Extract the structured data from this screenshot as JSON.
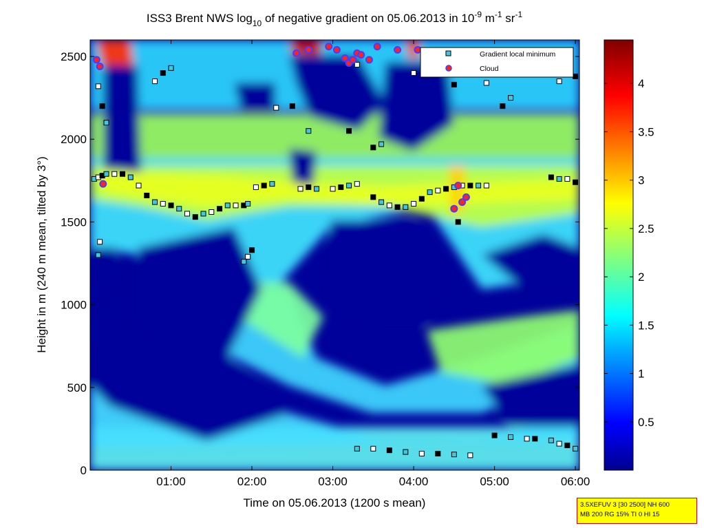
{
  "chart_data": {
    "type": "heatmap",
    "title": {
      "prefix": "ISS3 Brent NWS log",
      "sub": "10",
      "mid": " of negative gradient on 05.06.2013 in 10",
      "sup1": "-9",
      "mid2": " m",
      "sup2": "-1",
      "mid3": " sr",
      "sup3": "-1"
    },
    "xlabel": "Time on 05.06.2013 (1200 s mean)",
    "ylabel": "Height in m (240 m mean, tilted by 3°)",
    "x_ticks": [
      "01:00",
      "02:00",
      "03:00",
      "04:00",
      "05:00",
      "06:00"
    ],
    "x_tick_hours": [
      1,
      2,
      3,
      4,
      5,
      6
    ],
    "xlim_hours": [
      0,
      6.05
    ],
    "y_ticks": [
      0,
      500,
      1000,
      1500,
      2000,
      2500
    ],
    "ylim": [
      0,
      2600
    ],
    "colorbar": {
      "min": 0,
      "max": 4.45,
      "ticks": [
        0.5,
        1,
        1.5,
        2,
        2.5,
        3,
        3.5,
        4
      ],
      "tick_labels": [
        "0.5",
        "1",
        "1.5",
        "2",
        "2.5",
        "3",
        "3.5",
        "4"
      ],
      "colormap": "jet"
    },
    "legend": {
      "placement": "top-right",
      "entries": [
        {
          "label": "Gradient local minimum",
          "marker": "square",
          "color": "#40c8e0"
        },
        {
          "label": "Cloud",
          "marker": "circle",
          "color": "#ff2020",
          "edge": "#4040ff"
        }
      ]
    },
    "series": [
      {
        "name": "Gradient local minimum",
        "points": [
          [
            0.05,
            1760
          ],
          [
            0.1,
            1770
          ],
          [
            0.15,
            1780
          ],
          [
            0.2,
            1790
          ],
          [
            0.3,
            1790
          ],
          [
            0.4,
            1790
          ],
          [
            0.5,
            1770
          ],
          [
            0.6,
            1720
          ],
          [
            0.7,
            1660
          ],
          [
            0.8,
            1620
          ],
          [
            0.9,
            1610
          ],
          [
            1.0,
            1600
          ],
          [
            1.1,
            1580
          ],
          [
            1.2,
            1550
          ],
          [
            1.3,
            1530
          ],
          [
            1.4,
            1550
          ],
          [
            1.5,
            1560
          ],
          [
            1.6,
            1580
          ],
          [
            1.7,
            1600
          ],
          [
            1.8,
            1600
          ],
          [
            1.9,
            1600
          ],
          [
            1.95,
            1610
          ],
          [
            2.05,
            1710
          ],
          [
            2.15,
            1720
          ],
          [
            2.25,
            1730
          ],
          [
            2.6,
            1700
          ],
          [
            2.7,
            1710
          ],
          [
            2.8,
            1700
          ],
          [
            3.0,
            1700
          ],
          [
            3.1,
            1710
          ],
          [
            3.2,
            1720
          ],
          [
            3.3,
            1730
          ],
          [
            3.5,
            1650
          ],
          [
            3.6,
            1620
          ],
          [
            3.7,
            1600
          ],
          [
            3.8,
            1590
          ],
          [
            3.9,
            1590
          ],
          [
            4.0,
            1610
          ],
          [
            4.1,
            1640
          ],
          [
            4.2,
            1680
          ],
          [
            4.3,
            1690
          ],
          [
            4.4,
            1700
          ],
          [
            4.5,
            1710
          ],
          [
            4.6,
            1720
          ],
          [
            4.7,
            1720
          ],
          [
            4.8,
            1720
          ],
          [
            4.9,
            1720
          ],
          [
            5.7,
            1770
          ],
          [
            5.8,
            1760
          ],
          [
            5.9,
            1760
          ],
          [
            6.0,
            1740
          ],
          [
            1.9,
            1260
          ],
          [
            1.95,
            1290
          ],
          [
            2.0,
            1330
          ],
          [
            3.3,
            130
          ],
          [
            3.5,
            130
          ],
          [
            3.7,
            120
          ],
          [
            3.9,
            110
          ],
          [
            4.1,
            100
          ],
          [
            4.3,
            100
          ],
          [
            4.5,
            95
          ],
          [
            4.7,
            90
          ],
          [
            5.0,
            210
          ],
          [
            5.2,
            200
          ],
          [
            5.4,
            190
          ],
          [
            5.5,
            190
          ],
          [
            5.7,
            180
          ],
          [
            5.8,
            160
          ],
          [
            5.9,
            150
          ],
          [
            6.0,
            130
          ],
          [
            0.1,
            2320
          ],
          [
            0.15,
            2200
          ],
          [
            0.2,
            2100
          ],
          [
            0.8,
            2350
          ],
          [
            0.9,
            2400
          ],
          [
            1.0,
            2430
          ],
          [
            2.3,
            2190
          ],
          [
            2.5,
            2200
          ],
          [
            3.2,
            2460
          ],
          [
            3.3,
            2450
          ],
          [
            3.5,
            1950
          ],
          [
            3.6,
            1970
          ],
          [
            4.0,
            2400
          ],
          [
            4.5,
            2330
          ],
          [
            4.7,
            2400
          ],
          [
            4.9,
            2340
          ],
          [
            5.1,
            2200
          ],
          [
            5.2,
            2250
          ],
          [
            5.8,
            2350
          ],
          [
            6.0,
            2380
          ],
          [
            0.1,
            1300
          ],
          [
            0.12,
            1380
          ],
          [
            3.2,
            2050
          ],
          [
            2.7,
            2050
          ],
          [
            4.5,
            1580
          ],
          [
            4.55,
            1500
          ]
        ]
      },
      {
        "name": "Cloud",
        "points": [
          [
            0.08,
            2480
          ],
          [
            0.12,
            2440
          ],
          [
            0.16,
            1730
          ],
          [
            2.55,
            2520
          ],
          [
            2.7,
            2540
          ],
          [
            2.95,
            2560
          ],
          [
            3.05,
            2540
          ],
          [
            3.15,
            2490
          ],
          [
            3.2,
            2460
          ],
          [
            3.25,
            2480
          ],
          [
            3.3,
            2520
          ],
          [
            3.35,
            2510
          ],
          [
            3.45,
            2480
          ],
          [
            3.55,
            2560
          ],
          [
            3.8,
            2540
          ],
          [
            4.05,
            2540
          ],
          [
            4.5,
            1580
          ],
          [
            4.6,
            1620
          ],
          [
            4.65,
            1650
          ],
          [
            4.55,
            1720
          ]
        ]
      }
    ]
  },
  "info_box": {
    "line1": "3.5XEFUV 3 [30 2500] NH 600",
    "line2": "MB 200 RG 15% TI 0 HI 15"
  }
}
